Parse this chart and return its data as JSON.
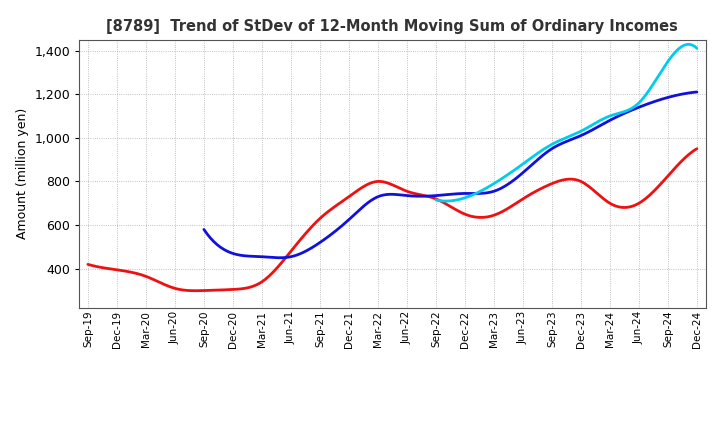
{
  "title": "[8789]  Trend of StDev of 12-Month Moving Sum of Ordinary Incomes",
  "ylabel": "Amount (million yen)",
  "background_color": "#ffffff",
  "grid_color": "#999999",
  "x_labels": [
    "Sep-19",
    "Dec-19",
    "Mar-20",
    "Jun-20",
    "Sep-20",
    "Dec-20",
    "Mar-21",
    "Jun-21",
    "Sep-21",
    "Dec-21",
    "Mar-22",
    "Jun-22",
    "Sep-22",
    "Dec-22",
    "Mar-23",
    "Jun-23",
    "Sep-23",
    "Dec-23",
    "Mar-24",
    "Jun-24",
    "Sep-24",
    "Dec-24"
  ],
  "ylim": [
    220,
    1450
  ],
  "yticks": [
    400,
    600,
    800,
    1000,
    1200,
    1400
  ],
  "series": {
    "3 Years": {
      "color": "#ee1111",
      "linewidth": 2.0,
      "data_x": [
        0,
        1,
        2,
        3,
        4,
        5,
        6,
        7,
        8,
        9,
        10,
        11,
        12,
        13,
        14,
        15,
        16,
        17,
        18,
        19,
        20,
        21
      ],
      "data_y": [
        420,
        395,
        365,
        310,
        300,
        305,
        340,
        480,
        630,
        730,
        800,
        755,
        720,
        650,
        645,
        720,
        790,
        800,
        700,
        700,
        825,
        950
      ]
    },
    "5 Years": {
      "color": "#1111dd",
      "linewidth": 2.0,
      "data_x": [
        4,
        5,
        6,
        7,
        8,
        9,
        10,
        11,
        12,
        13,
        14,
        15,
        16,
        17,
        18,
        19,
        20,
        21
      ],
      "data_y": [
        580,
        470,
        455,
        455,
        520,
        625,
        730,
        735,
        735,
        745,
        755,
        840,
        950,
        1010,
        1080,
        1140,
        1185,
        1210
      ]
    },
    "7 Years": {
      "color": "#00ccee",
      "linewidth": 2.0,
      "data_x": [
        12,
        13,
        14,
        15,
        16,
        17,
        18,
        19,
        20,
        21
      ],
      "data_y": [
        715,
        725,
        790,
        880,
        970,
        1030,
        1100,
        1160,
        1350,
        1410
      ]
    },
    "10 Years": {
      "color": "#00aa00",
      "linewidth": 2.0,
      "data_x": [],
      "data_y": []
    }
  }
}
